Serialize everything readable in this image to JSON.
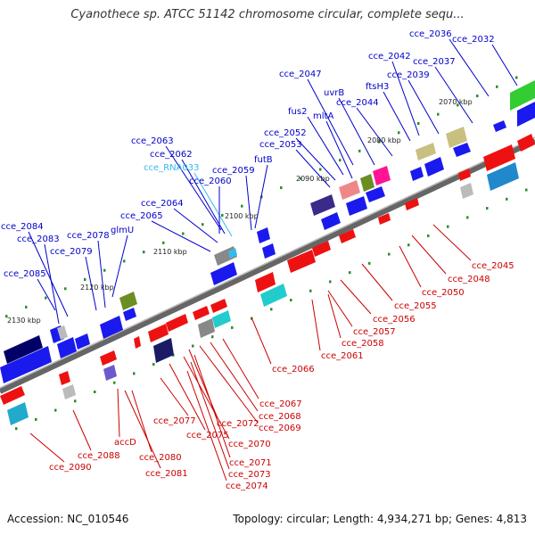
{
  "title": "Cyanothece sp. ATCC 51142 chromosome circular, complete sequ...",
  "footer": {
    "accession": "Accession: NC_010546",
    "summary": "Topology: circular; Length: 4,934,271 bp; Genes: 4,813"
  },
  "colors": {
    "forward_label": "#0000cc",
    "reverse_label": "#cc0000",
    "rna_label": "#33bbee",
    "forward_strand": "#1a1aee",
    "reverse_strand": "#ee1111",
    "backbone": "#777777",
    "tick": "#2e8b2e"
  },
  "kbp_labels": [
    "2070 kbp",
    "2080 kbp",
    "2090 kbp",
    "2100 kbp",
    "2110 kbp",
    "2120 kbp",
    "2130 kbp"
  ],
  "forward_labels": [
    "cce_2036",
    "cce_2032",
    "cce_2042",
    "cce_2037",
    "cce_2047",
    "uvrB",
    "cce_2039",
    "ftsH3",
    "cce_2044",
    "fus2",
    "mltA",
    "cce_2052",
    "cce_2053",
    "futB",
    "cce_2063",
    "cce_2062",
    "cce_RNA033",
    "cce_2059",
    "cce_2060",
    "cce_2064",
    "cce_2065",
    "cce_2084",
    "glmU",
    "cce_2078",
    "cce_2083",
    "cce_2079",
    "cce_2085"
  ],
  "reverse_labels": [
    "cce_2045",
    "cce_2048",
    "cce_2050",
    "cce_2055",
    "cce_2056",
    "cce_2057",
    "cce_2058",
    "cce_2061",
    "cce_2066",
    "cce_2067",
    "cce_2068",
    "cce_2069",
    "cce_2077",
    "cce_2072",
    "cce_2075",
    "cce_2070",
    "accD",
    "cce_2088",
    "cce_2080",
    "cce_2071",
    "cce_2073",
    "cce_2090",
    "cce_2081",
    "cce_2074"
  ]
}
